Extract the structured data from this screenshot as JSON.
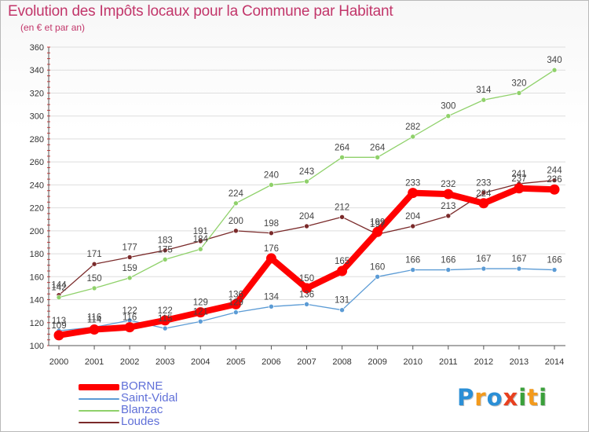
{
  "title": "Evolution des Impôts locaux pour la Commune par Habitant",
  "subtitle": "(en € et par an)",
  "logo": {
    "text": "Proxiti",
    "colors": [
      "#2b8fd6",
      "#f39a1c",
      "#2b8fd6",
      "#e8401f",
      "#3aa03a",
      "#f39a1c",
      "#3aa03a"
    ]
  },
  "chart_data": {
    "type": "line",
    "title": "Evolution des Impôts locaux pour la Commune par Habitant",
    "subtitle": "(en € et par an)",
    "xlabel": "",
    "ylabel": "",
    "ylim": [
      100,
      360
    ],
    "yticks": [
      100,
      120,
      140,
      160,
      180,
      200,
      220,
      240,
      260,
      280,
      300,
      320,
      340,
      360
    ],
    "grid": "horizontal",
    "legend": "bottom-left",
    "categories": [
      "2000",
      "2001",
      "2002",
      "2003",
      "2004",
      "2005",
      "2006",
      "2007",
      "2008",
      "2009",
      "2010",
      "2011",
      "2012",
      "2013",
      "2014"
    ],
    "series": [
      {
        "name": "BORNE",
        "color": "#ff0000",
        "values": [
          109,
          114,
          116,
          122,
          129,
          136,
          176,
          150,
          165,
          199,
          233,
          232,
          224,
          237,
          236
        ],
        "labels": [
          "109",
          "114",
          "116",
          "122",
          "129",
          "136",
          "176",
          "150",
          "165",
          "199",
          "233",
          "232",
          "224",
          "237",
          "236"
        ]
      },
      {
        "name": "Saint-Vidal",
        "color": "#5b9bd5",
        "values": [
          113,
          116,
          122,
          115,
          121,
          129,
          134,
          136,
          131,
          160,
          166,
          166,
          167,
          167,
          166
        ],
        "labels": [
          "113",
          "116",
          "122",
          "115",
          "121",
          "129",
          "134",
          "136",
          "131",
          "160",
          "166",
          "166",
          "167",
          "167",
          "166"
        ]
      },
      {
        "name": "Blanzac",
        "color": "#8fd16a",
        "values": [
          142,
          150,
          159,
          175,
          184,
          224,
          240,
          243,
          264,
          264,
          282,
          300,
          314,
          320,
          340
        ],
        "labels": [
          "142",
          "150",
          "159",
          "175",
          "184",
          "224",
          "240",
          "243",
          "264",
          "264",
          "282",
          "300",
          "314",
          "320",
          "340"
        ]
      },
      {
        "name": "Loudes",
        "color": "#7a2a2a",
        "values": [
          144,
          171,
          177,
          183,
          191,
          200,
          198,
          204,
          212,
          197,
          204,
          213,
          233,
          241,
          244
        ],
        "labels": [
          "144",
          "171",
          "177",
          "183",
          "191",
          "200",
          "198",
          "204",
          "212",
          "197",
          "204",
          "213",
          "233",
          "241",
          "244"
        ]
      }
    ]
  }
}
